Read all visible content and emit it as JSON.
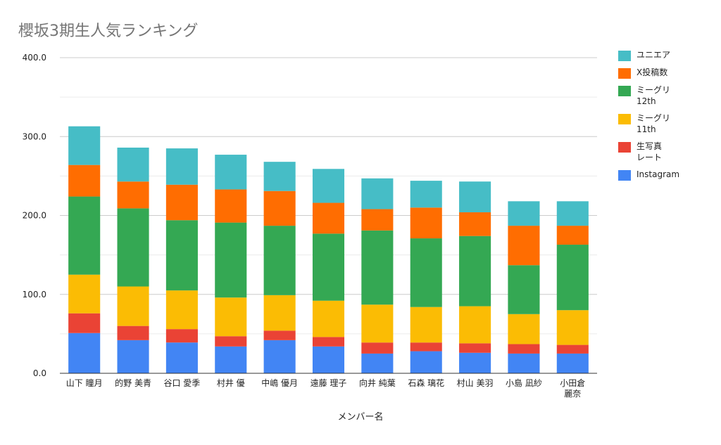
{
  "chart_data": {
    "type": "bar",
    "stacked": true,
    "title": "櫻坂3期生人気ランキング",
    "xlabel": "メンバー名",
    "ylabel": "",
    "ylim": [
      0,
      400
    ],
    "yticks": [
      "0.0",
      "100.0",
      "200.0",
      "300.0",
      "400.0"
    ],
    "grid": true,
    "legend_position": "right",
    "categories": [
      "山下 瞳月",
      "的野 美青",
      "谷口 愛季",
      "村井 優",
      "中嶋 優月",
      "遠藤 理子",
      "向井 純葉",
      "石森 璃花",
      "村山 美羽",
      "小島 凪紗",
      "小田倉\n麗奈"
    ],
    "series": [
      {
        "name": "Instagram",
        "color": "#4285f4",
        "values": [
          51,
          42,
          39,
          34,
          42,
          34,
          25,
          28,
          26,
          25,
          25
        ]
      },
      {
        "name": "生写真\nレート",
        "color": "#ea4335",
        "values": [
          25,
          18,
          17,
          13,
          12,
          12,
          14,
          11,
          12,
          12,
          11
        ]
      },
      {
        "name": "ミーグリ\n11th",
        "color": "#fbbc04",
        "values": [
          49,
          50,
          49,
          49,
          45,
          46,
          48,
          45,
          47,
          38,
          44
        ]
      },
      {
        "name": "ミーグリ\n12th",
        "color": "#34a853",
        "values": [
          99,
          99,
          89,
          95,
          88,
          85,
          94,
          87,
          89,
          62,
          83
        ]
      },
      {
        "name": "X投稿数",
        "color": "#ff6d01",
        "values": [
          40,
          34,
          45,
          42,
          44,
          39,
          27,
          39,
          30,
          50,
          24
        ]
      },
      {
        "name": "ユニエア",
        "color": "#46bdc6",
        "values": [
          49,
          43,
          46,
          44,
          37,
          43,
          39,
          34,
          39,
          31,
          31
        ]
      }
    ]
  }
}
